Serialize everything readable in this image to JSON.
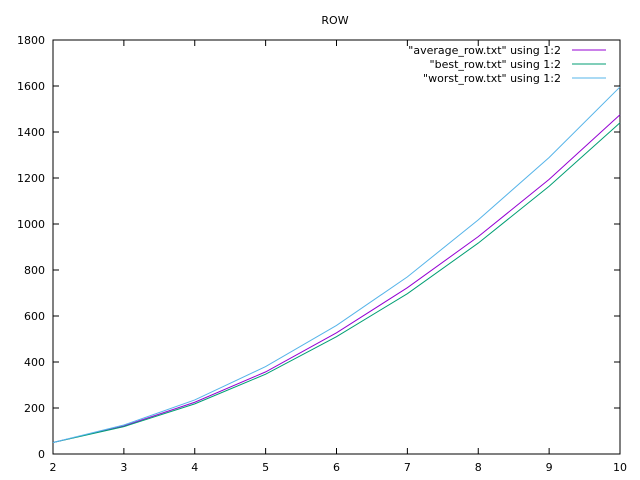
{
  "chart_data": {
    "type": "line",
    "title": "ROW",
    "xlabel": "",
    "ylabel": "",
    "xlim": [
      2,
      10
    ],
    "ylim": [
      0,
      1800
    ],
    "xticks": [
      2,
      3,
      4,
      5,
      6,
      7,
      8,
      9,
      10
    ],
    "yticks": [
      0,
      200,
      400,
      600,
      800,
      1000,
      1200,
      1400,
      1600,
      1800
    ],
    "grid": false,
    "legend_position": "top-right",
    "x": [
      2,
      3,
      4,
      5,
      6,
      7,
      8,
      9,
      10
    ],
    "series": [
      {
        "name": "\"average_row.txt\" using 1:2",
        "color": "#9400d3",
        "values": [
          50,
          122,
          225,
          357,
          527,
          723,
          945,
          1194,
          1475
        ]
      },
      {
        "name": "\"best_row.txt\" using 1:2",
        "color": "#009e73",
        "values": [
          50,
          119,
          218,
          347,
          510,
          697,
          917,
          1164,
          1440
        ]
      },
      {
        "name": "\"worst_row.txt\" using 1:2",
        "color": "#56b4e9",
        "values": [
          50,
          126,
          235,
          380,
          559,
          770,
          1018,
          1289,
          1596
        ]
      }
    ]
  }
}
